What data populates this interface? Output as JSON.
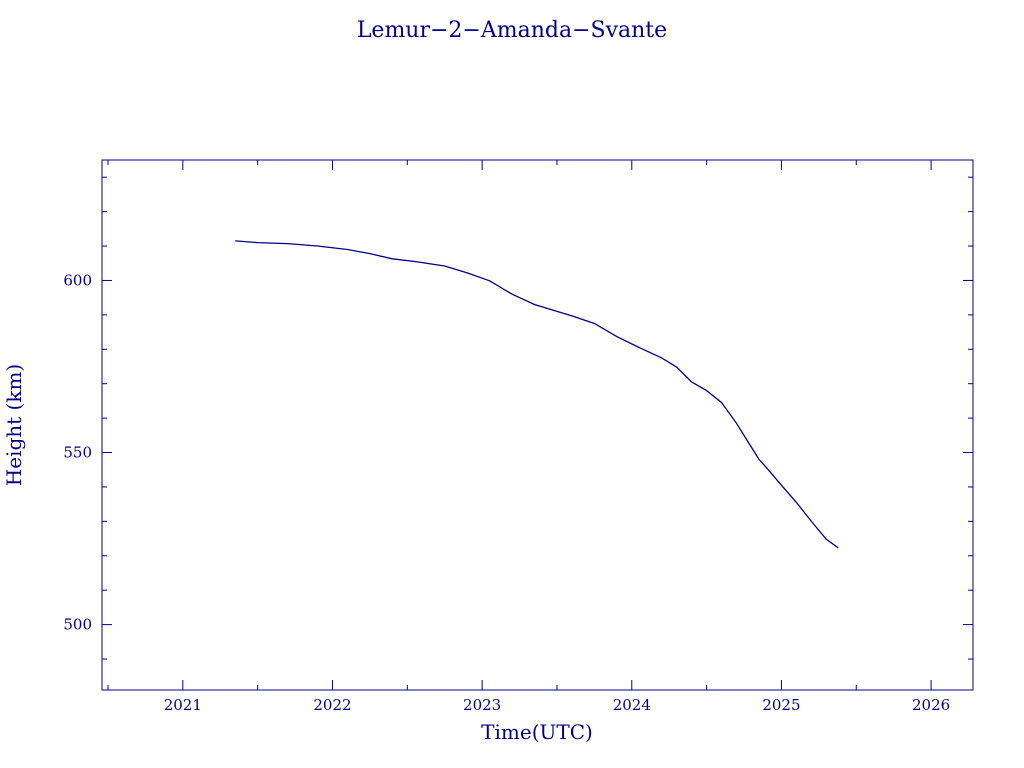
{
  "chart_data": {
    "type": "line",
    "title": "Lemur−2−Amanda−Svante",
    "xlabel": "Time(UTC)",
    "ylabel": "Height (km)",
    "xlim": [
      2020.46,
      2026.28
    ],
    "ylim": [
      481,
      635
    ],
    "x_major_ticks": [
      2021,
      2022,
      2023,
      2024,
      2025,
      2026
    ],
    "y_major_ticks": [
      500,
      550,
      600
    ],
    "grid": false,
    "line_color": "#00008b",
    "series": [
      {
        "x": [
          2021.35,
          2021.5,
          2021.7,
          2021.9,
          2022.1,
          2022.25,
          2022.4,
          2022.55,
          2022.75,
          2022.9,
          2023.05,
          2023.2,
          2023.35,
          2023.5,
          2023.6,
          2023.75,
          2023.9,
          2024.05,
          2024.2,
          2024.3,
          2024.4,
          2024.5,
          2024.6,
          2024.7,
          2024.8,
          2024.85,
          2024.9,
          2025.0,
          2025.1,
          2025.2,
          2025.3,
          2025.38
        ],
        "y": [
          611.5,
          611.0,
          610.7,
          610.0,
          609.0,
          607.8,
          606.3,
          605.5,
          604.2,
          602.2,
          599.9,
          596.0,
          593.0,
          591.0,
          589.7,
          587.5,
          583.7,
          580.5,
          577.5,
          574.8,
          570.5,
          568.0,
          564.5,
          558.5,
          551.5,
          548.0,
          545.6,
          540.5,
          535.5,
          530.0,
          524.8,
          522.3
        ]
      }
    ]
  }
}
